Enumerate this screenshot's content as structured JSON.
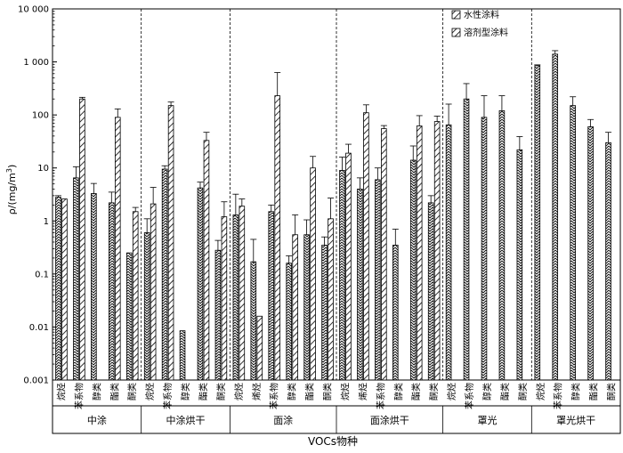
{
  "chart_data": {
    "type": "bar",
    "y_scale": "log",
    "ylim": [
      0.001,
      10000
    ],
    "ylabel": "ρ/(mg/m3)",
    "ylabel_parts": {
      "main": "ρ/(mg/m",
      "sup": "3",
      "close": ")"
    },
    "yticks": [
      0.001,
      0.01,
      0.1,
      1,
      10,
      100,
      1000,
      10000
    ],
    "ytick_labels": [
      "0.001",
      "0.01",
      "0.1",
      "1",
      "10",
      "100",
      "1 000",
      "10 000"
    ],
    "xlabel": "VOCs物种",
    "legend_position": "top-right",
    "series_names": [
      "水性涂料",
      "溶剂型涂料"
    ],
    "groups": [
      {
        "name": "中涂",
        "categories": [
          "烷烃",
          "苯系物",
          "醇类",
          "酯类",
          "酮类"
        ],
        "water": [
          2.8,
          6.5,
          3.3,
          2.2,
          0.25
        ],
        "water_err": [
          0.2,
          4.0,
          1.8,
          1.3,
          0
        ],
        "solvent": [
          2.6,
          200,
          null,
          90,
          1.5
        ],
        "solvent_err": [
          0,
          15,
          null,
          40,
          0.3
        ]
      },
      {
        "name": "中涂烘干",
        "categories": [
          "烷烃",
          "苯系物",
          "醇类",
          "酯类",
          "酮类"
        ],
        "water": [
          0.6,
          9.5,
          0.0085,
          4.2,
          0.28
        ],
        "water_err": [
          0.5,
          1.5,
          0,
          1.2,
          0.15
        ],
        "solvent": [
          2.1,
          150,
          null,
          33,
          1.2
        ],
        "solvent_err": [
          2.2,
          25,
          null,
          14,
          1.1
        ]
      },
      {
        "name": "面涂",
        "categories": [
          "烷烃",
          "烯烃",
          "苯系物",
          "醇类",
          "酯类",
          "酮类"
        ],
        "water": [
          1.3,
          0.17,
          1.5,
          0.16,
          0.55,
          0.35
        ],
        "water_err": [
          1.9,
          0.28,
          0.5,
          0.06,
          0.5,
          0.15
        ],
        "solvent": [
          1.9,
          0.016,
          230,
          0.55,
          10,
          1.1
        ],
        "solvent_err": [
          0.7,
          0,
          400,
          0.75,
          6.5,
          1.6
        ]
      },
      {
        "name": "面涂烘干",
        "categories": [
          "烷烃",
          "烯烃",
          "苯系物",
          "醇类",
          "酯类",
          "酮类"
        ],
        "water": [
          9,
          4,
          6,
          0.35,
          14,
          2.2
        ],
        "water_err": [
          7,
          2.5,
          4,
          0.35,
          12,
          0.8
        ],
        "solvent": [
          19,
          110,
          55,
          null,
          62,
          75
        ],
        "solvent_err": [
          9,
          45,
          8,
          null,
          35,
          20
        ]
      },
      {
        "name": "罩光",
        "categories": [
          "烷烃",
          "苯系物",
          "醇类",
          "酯类",
          "酮类"
        ],
        "water": [
          65,
          200,
          90,
          120,
          22
        ],
        "water_err": [
          95,
          190,
          140,
          110,
          17
        ],
        "solvent": [
          null,
          null,
          null,
          null,
          null
        ],
        "solvent_err": [
          null,
          null,
          null,
          null,
          null
        ]
      },
      {
        "name": "罩光烘干",
        "categories": [
          "烷烃",
          "苯系物",
          "醇类",
          "酯类",
          "酮类"
        ],
        "water": [
          850,
          1400,
          150,
          60,
          30
        ],
        "water_err": [
          30,
          230,
          70,
          22,
          17
        ],
        "solvent": [
          null,
          null,
          null,
          null,
          null
        ],
        "solvent_err": [
          null,
          null,
          null,
          null,
          null
        ]
      }
    ]
  }
}
